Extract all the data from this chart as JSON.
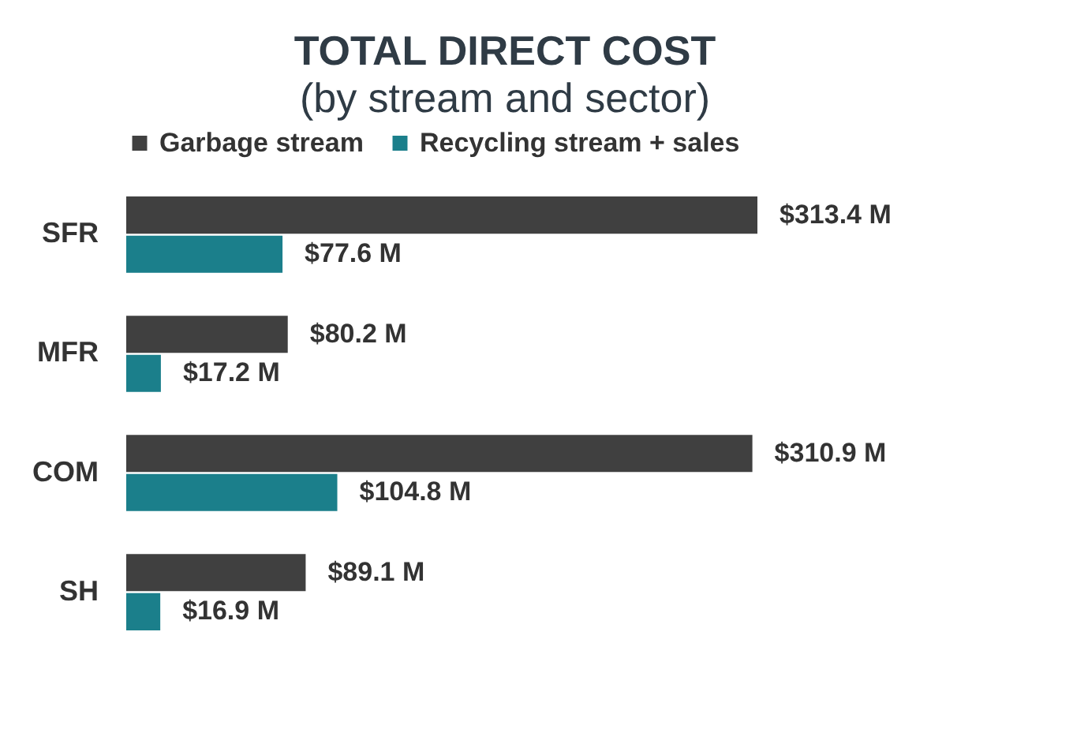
{
  "chart_data": {
    "type": "bar",
    "orientation": "horizontal",
    "title": "TOTAL DIRECT COST",
    "subtitle": "(by stream and sector)",
    "categories": [
      "SFR",
      "MFR",
      "COM",
      "SH"
    ],
    "legend": "top",
    "series": [
      {
        "name": "Garbage stream",
        "color": "#404040",
        "values": [
          313.4,
          80.2,
          310.9,
          89.1
        ],
        "value_labels": [
          "$313.4 M",
          "$80.2 M",
          "$310.9 M",
          "$89.1 M"
        ]
      },
      {
        "name": "Recycling stream + sales",
        "color": "#1b7f8b",
        "values": [
          77.6,
          17.2,
          104.8,
          16.9
        ],
        "value_labels": [
          "$77.6 M",
          "$17.2 M",
          "$104.8 M",
          "$16.9 M"
        ]
      }
    ]
  }
}
